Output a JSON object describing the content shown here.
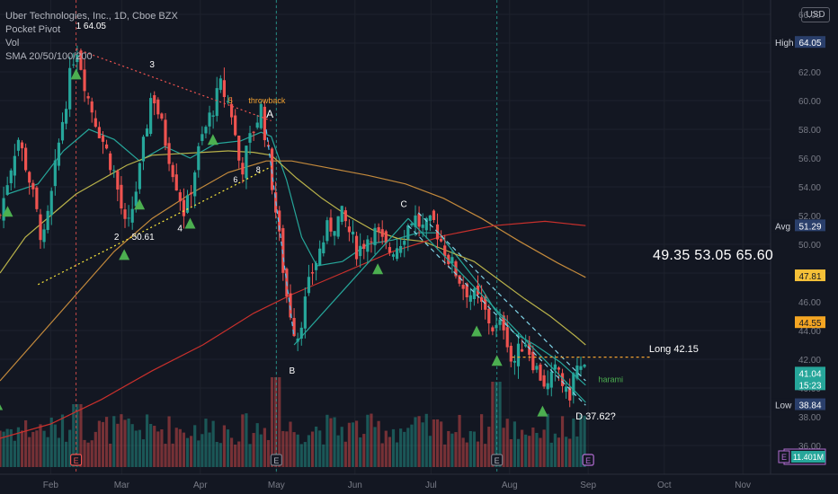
{
  "header": {
    "title": "Uber Technologies, Inc., 1D, Cboe BZX",
    "indicators": [
      "Pocket Pivot",
      "Vol",
      "SMA 20/50/100/200"
    ],
    "currency_button": "USD"
  },
  "colors": {
    "background": "#131722",
    "up": "#26a69a",
    "down": "#ef5350",
    "sma20": "#26a69a",
    "sma50": "#b9b24a",
    "sma100": "#c48a3c",
    "sma200": "#c9302c",
    "pivot": "#4caf50",
    "grid": "#1e222d"
  },
  "chart_data": {
    "type": "candlestick",
    "title": "Uber Technologies, Inc., 1D, Cboe BZX",
    "xlabel": "",
    "ylabel": "",
    "ylim": [
      34.5,
      66.5
    ],
    "y_ticks": [
      36,
      38,
      40,
      42,
      44,
      46,
      48,
      50,
      52,
      54,
      56,
      58,
      60,
      62,
      64,
      66
    ],
    "x_ticks": [
      {
        "label": "Feb",
        "day": 25
      },
      {
        "label": "Mar",
        "day": 53
      },
      {
        "label": "Apr",
        "day": 84
      },
      {
        "label": "May",
        "day": 114
      },
      {
        "label": "Jun",
        "day": 145
      },
      {
        "label": "Jul",
        "day": 175
      },
      {
        "label": "Aug",
        "day": 206
      },
      {
        "label": "Sep",
        "day": 237
      },
      {
        "label": "Oct",
        "day": 267
      },
      {
        "label": "Nov",
        "day": 298
      }
    ],
    "x_day_range": [
      5,
      310
    ],
    "key_points": [
      {
        "day": 5,
        "price": 52.0
      },
      {
        "day": 8,
        "price": 54.5
      },
      {
        "day": 12,
        "price": 57.5
      },
      {
        "day": 16,
        "price": 55.0
      },
      {
        "day": 22,
        "price": 50.0
      },
      {
        "day": 25,
        "price": 53.0
      },
      {
        "day": 29,
        "price": 58.0
      },
      {
        "day": 35,
        "price": 64.05
      },
      {
        "day": 40,
        "price": 60.0
      },
      {
        "day": 45,
        "price": 57.5
      },
      {
        "day": 50,
        "price": 55.0
      },
      {
        "day": 55,
        "price": 50.61
      },
      {
        "day": 60,
        "price": 55.0
      },
      {
        "day": 65,
        "price": 60.8
      },
      {
        "day": 72,
        "price": 56.0
      },
      {
        "day": 78,
        "price": 52.0
      },
      {
        "day": 84,
        "price": 57.0
      },
      {
        "day": 92,
        "price": 61.0
      },
      {
        "day": 96,
        "price": 59.5
      },
      {
        "day": 100,
        "price": 55.0
      },
      {
        "day": 104,
        "price": 57.5
      },
      {
        "day": 108,
        "price": 59.5
      },
      {
        "day": 111,
        "price": 56.0
      },
      {
        "day": 114,
        "price": 52.0
      },
      {
        "day": 118,
        "price": 46.5
      },
      {
        "day": 122,
        "price": 43.4
      },
      {
        "day": 128,
        "price": 48.0
      },
      {
        "day": 134,
        "price": 51.0
      },
      {
        "day": 140,
        "price": 52.0
      },
      {
        "day": 146,
        "price": 49.5
      },
      {
        "day": 152,
        "price": 51.0
      },
      {
        "day": 158,
        "price": 49.5
      },
      {
        "day": 162,
        "price": 50.0
      },
      {
        "day": 168,
        "price": 52.0
      },
      {
        "day": 172,
        "price": 51.0
      },
      {
        "day": 176,
        "price": 51.5
      },
      {
        "day": 182,
        "price": 49.0
      },
      {
        "day": 188,
        "price": 47.0
      },
      {
        "day": 194,
        "price": 46.0
      },
      {
        "day": 200,
        "price": 44.0
      },
      {
        "day": 204,
        "price": 44.5
      },
      {
        "day": 207,
        "price": 41.5
      },
      {
        "day": 212,
        "price": 43.5
      },
      {
        "day": 216,
        "price": 41.5
      },
      {
        "day": 221,
        "price": 40.0
      },
      {
        "day": 225,
        "price": 41.5
      },
      {
        "day": 229,
        "price": 39.0
      },
      {
        "day": 232,
        "price": 41.5
      },
      {
        "day": 236,
        "price": 41.04
      }
    ],
    "sma": [
      {
        "name": "SMA 20",
        "color": "#26a69a",
        "points": [
          [
            8,
            53.5
          ],
          [
            20,
            54.2
          ],
          [
            30,
            56.5
          ],
          [
            40,
            58.0
          ],
          [
            50,
            57.3
          ],
          [
            60,
            55.8
          ],
          [
            70,
            56.8
          ],
          [
            80,
            56.0
          ],
          [
            90,
            57.0
          ],
          [
            100,
            57.2
          ],
          [
            108,
            57.8
          ],
          [
            112,
            57.5
          ],
          [
            118,
            54.5
          ],
          [
            124,
            50.5
          ],
          [
            130,
            48.5
          ],
          [
            140,
            48.8
          ],
          [
            150,
            50.0
          ],
          [
            160,
            50.3
          ],
          [
            170,
            50.8
          ],
          [
            178,
            50.8
          ],
          [
            186,
            49.0
          ],
          [
            194,
            47.2
          ],
          [
            200,
            45.5
          ],
          [
            208,
            43.8
          ],
          [
            216,
            43.0
          ],
          [
            226,
            41.8
          ],
          [
            236,
            40.2
          ]
        ]
      },
      {
        "name": "SMA 50",
        "color": "#b9b24a",
        "points": [
          [
            5,
            48.0
          ],
          [
            15,
            50.5
          ],
          [
            25,
            52.0
          ],
          [
            35,
            53.5
          ],
          [
            45,
            54.5
          ],
          [
            55,
            55.5
          ],
          [
            65,
            56.2
          ],
          [
            75,
            56.3
          ],
          [
            85,
            56.4
          ],
          [
            95,
            56.5
          ],
          [
            105,
            56.4
          ],
          [
            112,
            56.2
          ],
          [
            122,
            54.6
          ],
          [
            132,
            53.2
          ],
          [
            142,
            52.0
          ],
          [
            152,
            51.0
          ],
          [
            162,
            50.4
          ],
          [
            172,
            50.2
          ],
          [
            182,
            49.5
          ],
          [
            192,
            48.8
          ],
          [
            202,
            47.5
          ],
          [
            212,
            46.2
          ],
          [
            222,
            45.0
          ],
          [
            232,
            43.6
          ],
          [
            236,
            43.0
          ]
        ]
      },
      {
        "name": "SMA 100",
        "color": "#c48a3c",
        "points": [
          [
            5,
            40.5
          ],
          [
            20,
            43.5
          ],
          [
            35,
            46.5
          ],
          [
            50,
            49.5
          ],
          [
            65,
            51.8
          ],
          [
            80,
            53.5
          ],
          [
            95,
            55.0
          ],
          [
            110,
            55.8
          ],
          [
            120,
            55.8
          ],
          [
            135,
            55.3
          ],
          [
            150,
            54.8
          ],
          [
            165,
            54.2
          ],
          [
            180,
            53.2
          ],
          [
            195,
            51.8
          ],
          [
            210,
            50.2
          ],
          [
            225,
            48.7
          ],
          [
            236,
            47.7
          ]
        ]
      },
      {
        "name": "SMA 200",
        "color": "#c9302c",
        "points": [
          [
            5,
            36.5
          ],
          [
            25,
            37.5
          ],
          [
            45,
            39.2
          ],
          [
            65,
            41.2
          ],
          [
            85,
            43.0
          ],
          [
            105,
            45.2
          ],
          [
            120,
            46.5
          ],
          [
            140,
            48.0
          ],
          [
            160,
            49.5
          ],
          [
            180,
            50.6
          ],
          [
            200,
            51.3
          ],
          [
            220,
            51.6
          ],
          [
            236,
            51.3
          ]
        ]
      }
    ],
    "price_levels": [
      {
        "label": "High",
        "value": 64.05,
        "text": "64.05",
        "bg": "#2a3f6b",
        "fg": "#ffffff",
        "tag": "#131722"
      },
      {
        "label": "Avg",
        "value": 51.29,
        "text": "51.29",
        "bg": "#2a3f6b",
        "fg": "#ffffff",
        "tag": "#131722"
      },
      {
        "label": "",
        "value": 47.81,
        "text": "47.81",
        "bg": "#f5c038",
        "fg": "#131722",
        "tag": ""
      },
      {
        "label": "",
        "value": 44.55,
        "text": "44.55",
        "bg": "#f5a623",
        "fg": "#131722",
        "tag": ""
      },
      {
        "label": "",
        "value": 41.04,
        "text": "41.04",
        "sub": "15:23",
        "bg": "#26a69a",
        "fg": "#ffffff",
        "tag": ""
      },
      {
        "label": "Low",
        "value": 38.84,
        "text": "38.84",
        "bg": "#2a3f6b",
        "fg": "#ffffff",
        "tag": "#131722"
      }
    ],
    "volume_last": "11.401M",
    "annotations": [
      {
        "text": "1 64.05",
        "day": 35,
        "price": 65.0,
        "color": "#ffffff",
        "size": 10
      },
      {
        "text": "3",
        "day": 64,
        "price": 62.3,
        "color": "#ffffff",
        "size": 10
      },
      {
        "text": "5",
        "day": 95,
        "price": 59.8,
        "color": "#f0a030",
        "size": 9
      },
      {
        "text": "throwback",
        "day": 103,
        "price": 59.8,
        "color": "#f0a030",
        "size": 9
      },
      {
        "text": "A",
        "day": 110,
        "price": 58.8,
        "color": "#ffffff",
        "size": 12
      },
      {
        "text": "6",
        "day": 97,
        "price": 54.3,
        "color": "#ffffff",
        "size": 9
      },
      {
        "text": "8",
        "day": 106,
        "price": 55.0,
        "color": "#ffffff",
        "size": 9
      },
      {
        "text": "2",
        "day": 50,
        "price": 50.3,
        "color": "#ffffff",
        "size": 10
      },
      {
        "text": "50.61",
        "day": 57,
        "price": 50.3,
        "color": "#ffffff",
        "size": 10
      },
      {
        "text": "4",
        "day": 75,
        "price": 50.9,
        "color": "#ffffff",
        "size": 10
      },
      {
        "text": "B",
        "day": 119,
        "price": 41.0,
        "color": "#ffffff",
        "size": 10
      },
      {
        "text": "C",
        "day": 163,
        "price": 52.6,
        "color": "#ffffff",
        "size": 10
      },
      {
        "text": "Long 42.15",
        "day": 261,
        "price": 42.5,
        "color": "#ffffff",
        "size": 11
      },
      {
        "text": "harami",
        "day": 241,
        "price": 40.4,
        "color": "#4caf50",
        "size": 9
      },
      {
        "text": "D  37.62?",
        "day": 232,
        "price": 37.8,
        "color": "#ffffff",
        "size": 11
      }
    ],
    "targets_text": "49.35  53.05  65.60",
    "pivots": [
      4,
      8,
      35,
      54,
      60,
      80,
      89,
      154,
      193,
      201,
      219
    ],
    "earnings_days": [
      35,
      114,
      201,
      237
    ],
    "vertical_dashes": [
      {
        "day": 35,
        "color": "#ef5350"
      },
      {
        "day": 114,
        "color": "#26a69a"
      },
      {
        "day": 201,
        "color": "#26a69a"
      }
    ],
    "trendlines": [
      {
        "from": [
          35,
          63.6
        ],
        "to": [
          112,
          58.6
        ],
        "color": "#ef5350",
        "dash": "2,3"
      },
      {
        "from": [
          20,
          47.2
        ],
        "to": [
          112,
          55.4
        ],
        "color": "#ffeb3b",
        "dash": "2,3"
      },
      {
        "from": [
          110,
          58.0
        ],
        "to": [
          121,
          43.5
        ],
        "color": "#4fc3f7",
        "dash": "5,4"
      },
      {
        "from": [
          121,
          43.0
        ],
        "to": [
          166,
          51.8
        ],
        "color": "#26a69a",
        "dash": ""
      },
      {
        "from": [
          166,
          51.8
        ],
        "to": [
          236,
          39.0
        ],
        "color": "#26a69a",
        "dash": ""
      },
      {
        "from": [
          166,
          51.3
        ],
        "to": [
          236,
          38.8
        ],
        "color": "#7fd3e6",
        "dash": "5,4"
      },
      {
        "from": [
          170,
          52.2
        ],
        "to": [
          236,
          40.5
        ],
        "color": "#7fd3e6",
        "dash": "5,4"
      },
      {
        "from": [
          207,
          42.15
        ],
        "to": [
          262,
          42.15
        ],
        "color": "#f0a030",
        "dash": "3,3"
      }
    ]
  }
}
